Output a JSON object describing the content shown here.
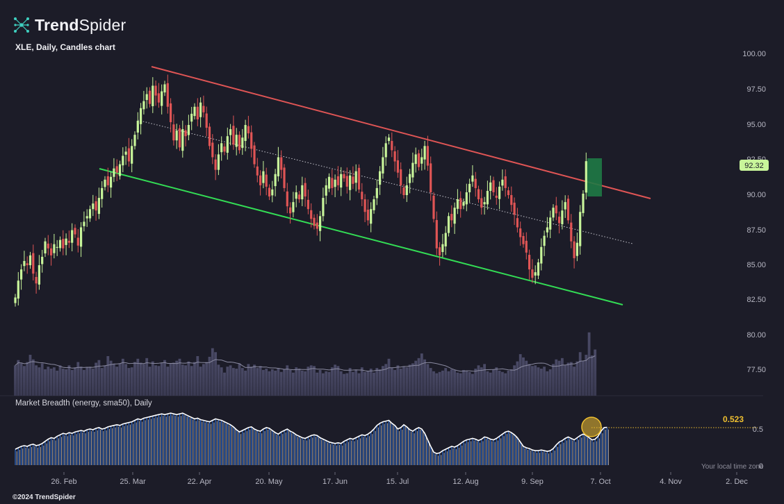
{
  "brand": {
    "name_bold": "Trend",
    "name_light": "Spider",
    "logo_icon": "spider-network-icon"
  },
  "chart_title": "XLE, Daily, Candles chart",
  "breadth_title": "Market Breadth (energy, sma50), Daily",
  "footer": "©2024 TrendSpider",
  "timezone_note": "Your local time zone",
  "colors": {
    "background": "#1c1c28",
    "up": "#c8f59a",
    "down": "#e05555",
    "upper_channel": "#e05555",
    "lower_channel": "#33dd55",
    "midline": "#c8c8d0",
    "breadth_line": "#ffffff",
    "breadth_fill": "#2f6fd6",
    "breadth_marker": "#f0c030",
    "highlight": "#1f7a45"
  },
  "price_badge": "92.32",
  "breadth_value": "0.523",
  "chart_data": {
    "type": "candlestick",
    "symbol": "XLE",
    "interval": "Daily",
    "x_ticks": [
      "26. Feb",
      "25. Mar",
      "22. Apr",
      "20. May",
      "17. Jun",
      "15. Jul",
      "12. Aug",
      "9. Sep",
      "7. Oct",
      "4. Nov",
      "2. Dec"
    ],
    "y_ticks": [
      "100.00",
      "97.50",
      "95.00",
      "92.50",
      "90.00",
      "87.50",
      "85.00",
      "82.50",
      "80.00",
      "77.50"
    ],
    "ylim": [
      76.5,
      101
    ],
    "breadth_ticks": [
      "0.5",
      "0"
    ],
    "breadth_ylim": [
      0,
      0.8
    ],
    "last_close": 92.32,
    "closes": [
      82.6,
      83.8,
      84.6,
      85.2,
      84.9,
      85.6,
      84.3,
      83.6,
      84.9,
      85.5,
      86.6,
      86.1,
      85.6,
      86.4,
      86.2,
      86.7,
      86.1,
      86.8,
      86.5,
      87.4,
      87.1,
      86.3,
      87.6,
      88.0,
      88.4,
      88.9,
      89.3,
      88.8,
      89.7,
      90.4,
      91.0,
      90.6,
      91.2,
      91.8,
      91.5,
      92.1,
      92.7,
      93.0,
      92.3,
      93.4,
      94.2,
      95.2,
      96.1,
      96.6,
      97.1,
      96.4,
      97.7,
      97.0,
      96.5,
      97.3,
      97.8,
      96.2,
      95.1,
      93.8,
      94.5,
      93.3,
      94.6,
      94.1,
      94.9,
      95.7,
      96.2,
      95.3,
      96.5,
      95.8,
      94.7,
      93.4,
      92.6,
      91.7,
      92.8,
      93.6,
      93.0,
      94.1,
      94.6,
      93.5,
      94.2,
      93.1,
      94.0,
      94.9,
      94.3,
      93.2,
      92.1,
      91.3,
      90.6,
      91.6,
      90.5,
      89.8,
      90.3,
      91.4,
      92.6,
      91.7,
      90.4,
      89.1,
      88.6,
      89.4,
      90.1,
      89.6,
      90.6,
      89.8,
      88.9,
      88.2,
      87.7,
      87.5,
      88.4,
      89.7,
      90.6,
      91.2,
      90.4,
      91.0,
      90.6,
      91.4,
      91.1,
      90.5,
      91.3,
      90.7,
      91.6,
      90.3,
      89.6,
      88.7,
      88.1,
      88.9,
      89.6,
      90.4,
      91.6,
      92.6,
      93.6,
      94.0,
      93.1,
      92.3,
      91.5,
      90.6,
      89.9,
      90.6,
      91.4,
      92.2,
      92.8,
      91.9,
      92.6,
      93.4,
      92.0,
      90.1,
      88.2,
      86.1,
      85.6,
      86.4,
      87.2,
      88.4,
      88.1,
      89.0,
      89.6,
      88.9,
      89.4,
      90.1,
      90.7,
      91.3,
      90.4,
      89.6,
      89.0,
      89.4,
      90.2,
      90.8,
      90.1,
      89.7,
      90.5,
      91.0,
      90.4,
      89.9,
      89.2,
      88.5,
      87.6,
      86.9,
      86.4,
      85.8,
      84.6,
      84.0,
      84.4,
      85.1,
      86.2,
      87.0,
      87.6,
      88.3,
      89.0,
      88.6,
      87.9,
      88.8,
      89.4,
      88.1,
      86.6,
      85.4,
      86.5,
      88.7,
      90.0,
      92.32
    ],
    "volume": [
      46,
      54,
      49,
      45,
      51,
      62,
      55,
      46,
      43,
      49,
      40,
      44,
      41,
      43,
      38,
      46,
      41,
      40,
      46,
      39,
      43,
      51,
      44,
      39,
      43,
      44,
      41,
      50,
      54,
      42,
      46,
      60,
      53,
      48,
      44,
      49,
      56,
      48,
      42,
      43,
      51,
      56,
      50,
      48,
      57,
      44,
      52,
      46,
      45,
      50,
      54,
      44,
      49,
      50,
      53,
      56,
      47,
      46,
      52,
      45,
      51,
      60,
      44,
      48,
      51,
      59,
      72,
      66,
      47,
      43,
      35,
      44,
      46,
      42,
      41,
      49,
      42,
      38,
      48,
      44,
      47,
      42,
      45,
      39,
      41,
      37,
      40,
      38,
      42,
      36,
      40,
      46,
      39,
      35,
      43,
      41,
      38,
      37,
      44,
      46,
      45,
      35,
      39,
      34,
      37,
      36,
      43,
      47,
      45,
      37,
      33,
      34,
      42,
      36,
      39,
      34,
      43,
      36,
      38,
      41,
      35,
      42,
      40,
      45,
      48,
      56,
      42,
      39,
      46,
      41,
      44,
      43,
      47,
      49,
      53,
      57,
      64,
      55,
      48,
      42,
      37,
      34,
      36,
      38,
      42,
      37,
      40,
      39,
      35,
      34,
      39,
      38,
      36,
      33,
      41,
      46,
      43,
      48,
      37,
      35,
      40,
      43,
      38,
      36,
      34,
      38,
      40,
      46,
      52,
      63,
      58,
      53,
      48,
      45,
      46,
      43,
      41,
      44,
      37,
      40,
      48,
      55,
      53,
      57,
      46,
      50,
      51,
      44,
      52,
      66,
      53,
      62,
      96,
      61,
      70
    ],
    "breadth": [
      0.22,
      0.24,
      0.26,
      0.27,
      0.26,
      0.28,
      0.29,
      0.27,
      0.28,
      0.3,
      0.33,
      0.36,
      0.38,
      0.37,
      0.4,
      0.42,
      0.44,
      0.43,
      0.45,
      0.44,
      0.46,
      0.47,
      0.48,
      0.47,
      0.49,
      0.5,
      0.49,
      0.51,
      0.52,
      0.5,
      0.51,
      0.53,
      0.54,
      0.55,
      0.56,
      0.55,
      0.57,
      0.58,
      0.59,
      0.6,
      0.62,
      0.64,
      0.63,
      0.65,
      0.66,
      0.67,
      0.68,
      0.69,
      0.7,
      0.71,
      0.7,
      0.71,
      0.72,
      0.71,
      0.7,
      0.71,
      0.72,
      0.7,
      0.68,
      0.66,
      0.64,
      0.65,
      0.63,
      0.62,
      0.61,
      0.6,
      0.62,
      0.64,
      0.63,
      0.62,
      0.6,
      0.58,
      0.56,
      0.53,
      0.49,
      0.46,
      0.48,
      0.5,
      0.52,
      0.53,
      0.5,
      0.48,
      0.47,
      0.5,
      0.52,
      0.51,
      0.48,
      0.45,
      0.43,
      0.46,
      0.48,
      0.5,
      0.47,
      0.45,
      0.42,
      0.4,
      0.38,
      0.37,
      0.39,
      0.41,
      0.42,
      0.41,
      0.38,
      0.36,
      0.34,
      0.32,
      0.31,
      0.3,
      0.31,
      0.3,
      0.33,
      0.35,
      0.37,
      0.36,
      0.38,
      0.4,
      0.42,
      0.41,
      0.43,
      0.46,
      0.5,
      0.55,
      0.58,
      0.6,
      0.61,
      0.62,
      0.58,
      0.55,
      0.5,
      0.52,
      0.56,
      0.53,
      0.49,
      0.47,
      0.5,
      0.52,
      0.5,
      0.44,
      0.35,
      0.26,
      0.18,
      0.16,
      0.17,
      0.2,
      0.22,
      0.24,
      0.26,
      0.25,
      0.27,
      0.3,
      0.33,
      0.35,
      0.36,
      0.37,
      0.36,
      0.34,
      0.36,
      0.39,
      0.38,
      0.36,
      0.35,
      0.37,
      0.4,
      0.43,
      0.46,
      0.47,
      0.45,
      0.42,
      0.38,
      0.32,
      0.26,
      0.24,
      0.23,
      0.21,
      0.2,
      0.2,
      0.21,
      0.2,
      0.19,
      0.2,
      0.23,
      0.28,
      0.32,
      0.34,
      0.37,
      0.39,
      0.37,
      0.35,
      0.38,
      0.41,
      0.43,
      0.41,
      0.38,
      0.35,
      0.36,
      0.4,
      0.47,
      0.52,
      0.523
    ]
  }
}
